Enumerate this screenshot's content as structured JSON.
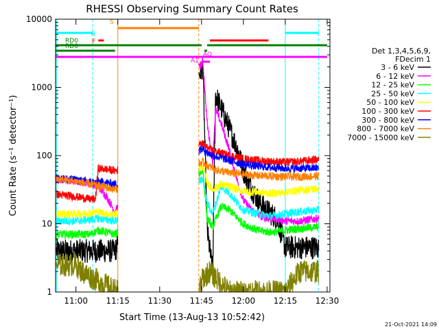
{
  "chart_data": {
    "type": "line",
    "title": "RHESSI Observing Summary Count Rates",
    "xlabel": "Start Time (13-Aug-13 10:52:42)",
    "ylabel": "Count Rate (s⁻¹ detector⁻¹)",
    "y_scale": "log",
    "ylim": [
      1,
      10000
    ],
    "xlim": [
      "10:52:42",
      "12:31:00"
    ],
    "x_ticks": [
      "11:00",
      "11:15",
      "11:30",
      "11:45",
      "12:00",
      "12:15",
      "12:30"
    ],
    "y_ticks": [
      "1",
      "10",
      "100",
      "1000",
      "10000"
    ],
    "timestamp": "21-Oct-2021 14:09",
    "legend": {
      "header": [
        "Det 1,3,4,5,6,9,",
        "FDecim 1"
      ],
      "position": "right"
    },
    "series": [
      {
        "name": "3 - 6 keV",
        "color": "#000000",
        "x": [
          "10:53",
          "11:02",
          "11:08",
          "11:11",
          "11:14",
          "11:45.5",
          "11:47",
          "11:49",
          "11:50",
          "11:52",
          "11:55",
          "11:58",
          "12:00",
          "12:03",
          "12:06",
          "12:09",
          "12:12",
          "12:15",
          "12:18",
          "12:21",
          "12:24",
          "12:27"
        ],
        "y": [
          4,
          4,
          4,
          4,
          4,
          2000,
          8,
          2,
          780,
          500,
          250,
          120,
          60,
          32,
          20,
          15,
          12,
          4.5,
          4.5,
          4.5,
          4.5,
          4.5
        ]
      },
      {
        "name": "6 - 12 keV",
        "color": "#ff00ff",
        "x": [
          "10:53",
          "11:00",
          "11:05",
          "11:08",
          "11:11",
          "11:14",
          "11:45.5",
          "11:47",
          "11:49",
          "11:50",
          "11:52",
          "11:55",
          "11:58",
          "12:00",
          "12:03",
          "12:06",
          "12:09",
          "12:12",
          "12:15",
          "12:20",
          "12:27"
        ],
        "y": [
          45,
          42,
          40,
          35,
          25,
          15,
          2400,
          300,
          80,
          480,
          300,
          120,
          40,
          22,
          16,
          13,
          12,
          12,
          11,
          11,
          12
        ]
      },
      {
        "name": "12 - 25 keV",
        "color": "#00ff00",
        "x": [
          "10:53",
          "11:00",
          "11:05",
          "11:08",
          "11:11",
          "11:14",
          "11:45.5",
          "11:47",
          "11:49",
          "11:52",
          "11:55",
          "11:58",
          "12:00",
          "12:05",
          "12:10",
          "12:15",
          "12:20",
          "12:27"
        ],
        "y": [
          7,
          7,
          7,
          8,
          7.5,
          7,
          60,
          12,
          9,
          18,
          16,
          12,
          10,
          8,
          7.5,
          8,
          8.5,
          9
        ]
      },
      {
        "name": "25 - 50 keV",
        "color": "#00ffff",
        "x": [
          "10:53",
          "11:00",
          "11:05",
          "11:08",
          "11:11",
          "11:14",
          "11:45.5",
          "11:47",
          "11:49",
          "11:52",
          "11:55",
          "11:58",
          "12:00",
          "12:05",
          "12:10",
          "12:15",
          "12:20",
          "12:27"
        ],
        "y": [
          11,
          11,
          11.5,
          12,
          11.5,
          11,
          45,
          20,
          14,
          35,
          28,
          20,
          16,
          14,
          13,
          14,
          15,
          16
        ]
      },
      {
        "name": "50 - 100 keV",
        "color": "#ffff00",
        "x": [
          "10:53",
          "11:00",
          "11:05",
          "11:08",
          "11:11",
          "11:14",
          "11:45.5",
          "11:47",
          "11:49",
          "11:52",
          "11:55",
          "11:58",
          "12:00",
          "12:05",
          "12:10",
          "12:15",
          "12:20",
          "12:27"
        ],
        "y": [
          14,
          14,
          14.5,
          15,
          14,
          14,
          70,
          40,
          32,
          38,
          35,
          32,
          30,
          29,
          28,
          29,
          31,
          33
        ]
      },
      {
        "name": "100 - 300 keV",
        "color": "#ff0000",
        "x": [
          "10:53",
          "11:00",
          "11:05",
          "11:07",
          "11:08",
          "11:11",
          "11:14",
          "11:45.5",
          "11:47",
          "11:50",
          "11:55",
          "12:00",
          "12:05",
          "12:10",
          "12:15",
          "12:20",
          "12:27"
        ],
        "y": [
          27,
          25,
          23,
          23,
          65,
          63,
          60,
          150,
          130,
          115,
          100,
          90,
          85,
          82,
          80,
          82,
          88
        ]
      },
      {
        "name": "300 - 800 keV",
        "color": "#0000ff",
        "x": [
          "10:53",
          "11:00",
          "11:05",
          "11:07",
          "11:08",
          "11:11",
          "11:14",
          "11:45.5",
          "11:47",
          "11:50",
          "11:55",
          "12:00",
          "12:05",
          "12:10",
          "12:15",
          "12:20",
          "12:27"
        ],
        "y": [
          47,
          44,
          41,
          40,
          42,
          40,
          38,
          125,
          110,
          98,
          85,
          75,
          70,
          67,
          65,
          65,
          66
        ]
      },
      {
        "name": "800 - 7000 keV",
        "color": "#ff8000",
        "x": [
          "10:53",
          "11:00",
          "11:05",
          "11:08",
          "11:11",
          "11:14",
          "11:45.5",
          "11:47",
          "11:50",
          "11:55",
          "12:00",
          "12:05",
          "12:10",
          "12:15",
          "12:20",
          "12:27"
        ],
        "y": [
          45,
          42,
          38,
          36,
          34,
          32,
          80,
          72,
          62,
          56,
          53,
          51,
          50,
          49,
          49,
          50
        ]
      },
      {
        "name": "7000 - 15000 keV",
        "color": "#808000",
        "x": [
          "10:53",
          "11:00",
          "11:02",
          "11:15",
          "11:44",
          "11:45.5",
          "11:48",
          "11:55",
          "12:00",
          "12:15",
          "12:20",
          "12:27"
        ],
        "y": [
          2.5,
          2.5,
          2,
          1,
          1,
          1.6,
          2,
          1,
          1,
          1,
          2,
          2
        ]
      }
    ],
    "flags": [
      {
        "name": "N",
        "color": "#00ffff",
        "segments": [
          [
            "10:52:42",
            "11:06"
          ],
          [
            "12:15",
            "12:27"
          ]
        ]
      },
      {
        "name": "F",
        "color": "#ff0000",
        "segments": [
          [
            "11:08",
            "11:10"
          ]
        ]
      },
      {
        "name": "S",
        "color": "#ff8000",
        "segments": [
          [
            "11:15",
            "11:44"
          ]
        ]
      },
      {
        "name": "",
        "color": "#ff0000",
        "segments": [
          [
            "11:48",
            "12:09"
          ]
        ]
      },
      {
        "name": "RD0",
        "color": "#008000",
        "segments": [
          [
            "10:52:42",
            "11:45"
          ],
          [
            "11:47",
            "12:30"
          ]
        ]
      },
      {
        "name": "RD6",
        "color": "#008000",
        "segments": [
          [
            "10:52:42",
            "11:14"
          ],
          [
            "11:46",
            "11:47"
          ]
        ]
      },
      {
        "name": "AQ",
        "color": "#ff00ff",
        "segments": [
          [
            "11:45.5",
            "11:48"
          ]
        ]
      },
      {
        "name": "A1",
        "color": "#ff00ff",
        "segments": [
          [
            "10:52:42",
            "12:30"
          ]
        ]
      }
    ],
    "vertical_markers": [
      {
        "time": "10:53",
        "color": "#00ffff",
        "style": "solid"
      },
      {
        "time": "11:06",
        "color": "#00ffff",
        "style": "dashed"
      },
      {
        "time": "11:15",
        "color": "#ff8000",
        "style": "solid"
      },
      {
        "time": "11:44",
        "color": "#ff8000",
        "style": "dashed"
      },
      {
        "time": "12:15",
        "color": "#00ffff",
        "style": "solid"
      },
      {
        "time": "12:27",
        "color": "#00ffff",
        "style": "dashed"
      }
    ]
  }
}
